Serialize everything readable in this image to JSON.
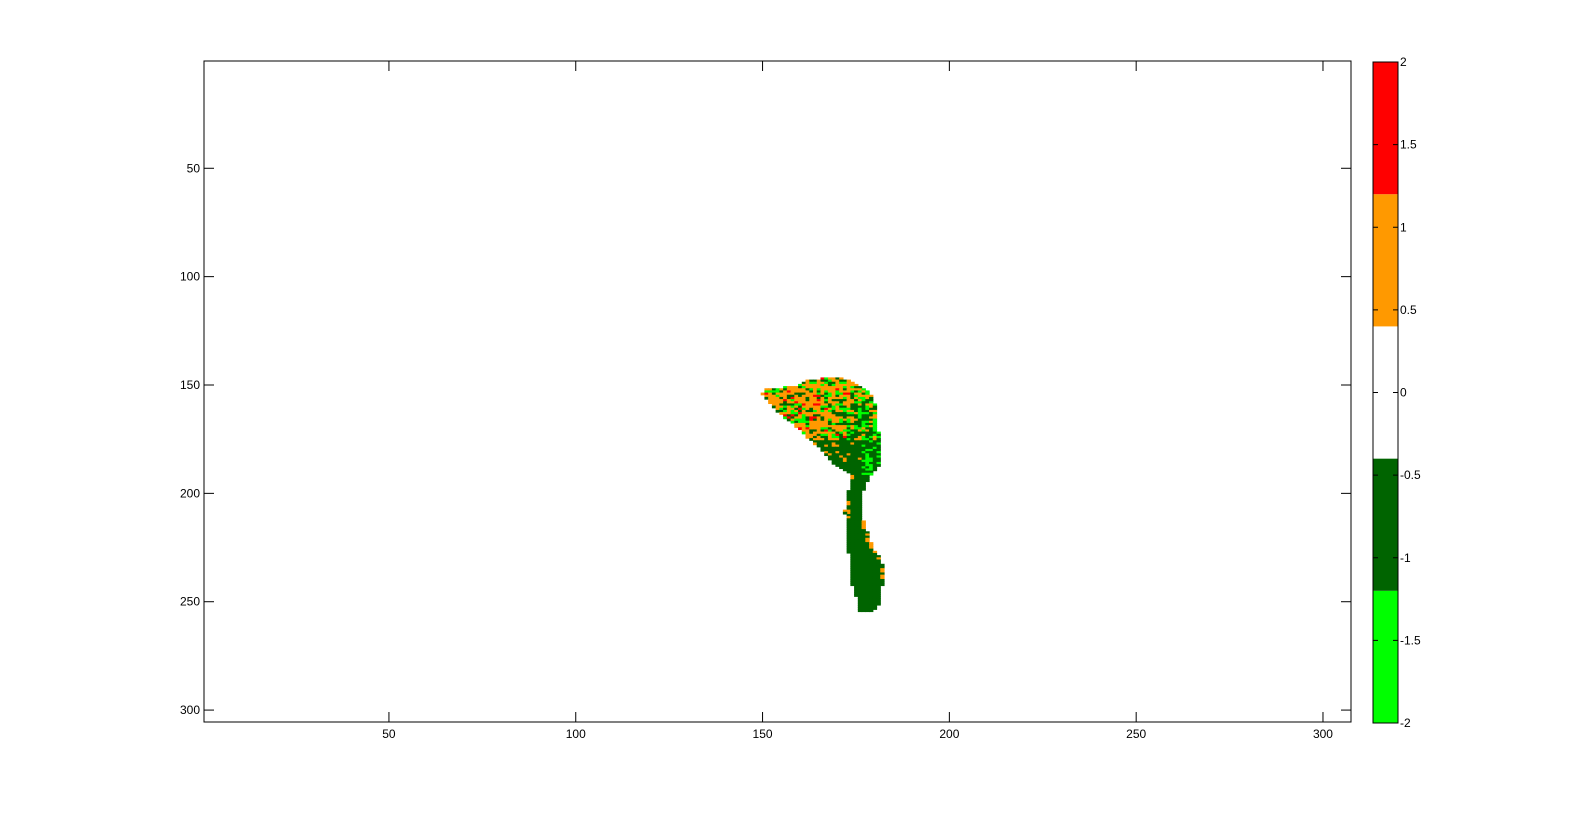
{
  "chart_data": {
    "type": "heatmap",
    "title": "",
    "xlabel": "",
    "ylabel": "",
    "xlim": [
      1,
      307
    ],
    "ylim": [
      1,
      305
    ],
    "y_reversed": true,
    "x_ticks": [
      50,
      100,
      150,
      200,
      250,
      300
    ],
    "y_ticks": [
      50,
      100,
      150,
      200,
      250,
      300
    ],
    "colorbar": {
      "range": [
        -2,
        2
      ],
      "ticks": [
        -2,
        -1.5,
        -1,
        -0.5,
        0,
        0.5,
        1,
        1.5,
        2
      ],
      "tick_labels": [
        "-2",
        "-1.5",
        "-1",
        "-0.5",
        "0",
        "0.5",
        "1",
        "1.5",
        "2"
      ],
      "bands": [
        {
          "from": -2,
          "to": -1.2,
          "color": "#00ff00"
        },
        {
          "from": -1.2,
          "to": -0.4,
          "color": "#006400"
        },
        {
          "from": -0.4,
          "to": 0.4,
          "color": "#ffffff"
        },
        {
          "from": 0.4,
          "to": 1.2,
          "color": "#ff9900"
        },
        {
          "from": 1.2,
          "to": 2,
          "color": "#ff0000"
        }
      ]
    },
    "region_rows": [
      {
        "y": 147,
        "x0": 166,
        "x1": 171
      },
      {
        "y": 148,
        "x0": 162,
        "x1": 173
      },
      {
        "y": 150,
        "x0": 160,
        "x1": 175
      },
      {
        "y": 152,
        "x0": 151,
        "x1": 177
      },
      {
        "y": 154,
        "x0": 150,
        "x1": 178
      },
      {
        "y": 156,
        "x0": 151,
        "x1": 179
      },
      {
        "y": 158,
        "x0": 152,
        "x1": 179
      },
      {
        "y": 160,
        "x0": 153,
        "x1": 180
      },
      {
        "y": 163,
        "x0": 155,
        "x1": 180
      },
      {
        "y": 166,
        "x0": 157,
        "x1": 180
      },
      {
        "y": 170,
        "x0": 160,
        "x1": 180
      },
      {
        "y": 174,
        "x0": 162,
        "x1": 181
      },
      {
        "y": 178,
        "x0": 165,
        "x1": 181
      },
      {
        "y": 182,
        "x0": 167,
        "x1": 181
      },
      {
        "y": 186,
        "x0": 169,
        "x1": 181
      },
      {
        "y": 188,
        "x0": 171,
        "x1": 180
      },
      {
        "y": 190,
        "x0": 173,
        "x1": 179
      },
      {
        "y": 192,
        "x0": 174,
        "x1": 178
      },
      {
        "y": 196,
        "x0": 174,
        "x1": 177
      },
      {
        "y": 200,
        "x0": 173,
        "x1": 176
      },
      {
        "y": 205,
        "x0": 173,
        "x1": 176
      },
      {
        "y": 210,
        "x0": 173,
        "x1": 176
      },
      {
        "y": 215,
        "x0": 173,
        "x1": 177
      },
      {
        "y": 220,
        "x0": 173,
        "x1": 178
      },
      {
        "y": 225,
        "x0": 173,
        "x1": 179
      },
      {
        "y": 230,
        "x0": 174,
        "x1": 181
      },
      {
        "y": 235,
        "x0": 174,
        "x1": 182
      },
      {
        "y": 240,
        "x0": 174,
        "x1": 182
      },
      {
        "y": 245,
        "x0": 175,
        "x1": 181
      },
      {
        "y": 250,
        "x0": 176,
        "x1": 181
      },
      {
        "y": 253,
        "x0": 176,
        "x1": 180
      },
      {
        "y": 254,
        "x0": 176,
        "x1": 179
      }
    ],
    "region_notes": "Upper lobe (y 147-175) mostly 0.4..1.2 (orange) mixed with -1.2..-0.4 (dark green) and -2..-1.2 (bright green) cells, sparse 1.2..2 (red) cells along upper-left edge; lower part (y 170-254) mostly dark green (-1.2..-0.4) with bright green speckle near x 175-180, y 160-185, and orange cells along the right edge near y 215-235."
  }
}
